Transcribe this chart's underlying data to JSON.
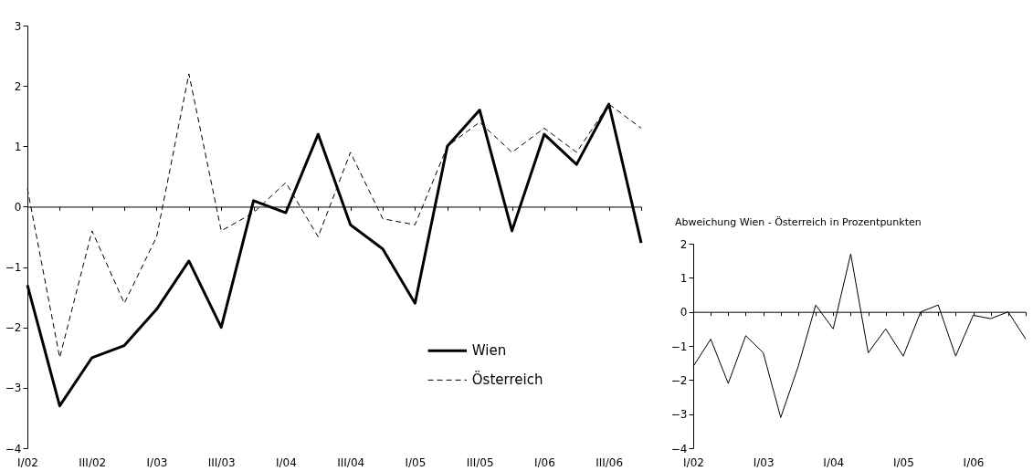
{
  "chart_data": [
    {
      "type": "line",
      "categories": [
        "I/02",
        null,
        "III/02",
        null,
        "I/03",
        null,
        "III/03",
        null,
        "I/04",
        null,
        "III/04",
        null,
        "I/05",
        null,
        "III/05",
        null,
        "I/06",
        null,
        "III/06",
        null
      ],
      "series": [
        {
          "name": "Wien",
          "color": "#000000",
          "line_style": "solid",
          "values": [
            -1.3,
            -3.3,
            -2.5,
            -2.3,
            -1.7,
            -0.9,
            -2.0,
            0.1,
            -0.1,
            1.2,
            -0.3,
            -0.7,
            -1.6,
            1.0,
            1.6,
            -0.4,
            1.2,
            0.7,
            1.7,
            -0.6
          ]
        },
        {
          "name": "Österreich",
          "color": "#000000",
          "line_style": "dashed",
          "values": [
            0.3,
            -2.5,
            -0.4,
            -1.6,
            -0.5,
            2.2,
            -0.4,
            -0.1,
            0.4,
            -0.5,
            0.9,
            -0.2,
            -0.3,
            1.0,
            1.4,
            0.9,
            1.3,
            0.9,
            1.7,
            1.3
          ]
        }
      ],
      "ylim": [
        -4,
        3
      ],
      "yticks": [
        -4,
        -3,
        -2,
        -1,
        0,
        1,
        2,
        3
      ],
      "legend": "bottom"
    },
    {
      "type": "line",
      "title": "Abweichung Wien - Österreich in  Prozentpunkten",
      "categories": [
        "I/02",
        null,
        null,
        null,
        "I/03",
        null,
        null,
        null,
        "I/04",
        null,
        null,
        null,
        "I/05",
        null,
        null,
        null,
        "I/06",
        null,
        null,
        null
      ],
      "series": [
        {
          "color": "#000000",
          "line_style": "solid",
          "values": [
            -1.6,
            -0.8,
            -2.1,
            -0.7,
            -1.2,
            -3.1,
            -1.6,
            0.2,
            -0.5,
            1.7,
            -1.2,
            -0.5,
            -1.3,
            0.0,
            0.2,
            -1.3,
            -0.1,
            -0.2,
            0.0,
            -0.8
          ]
        }
      ],
      "ylim": [
        -4,
        2
      ],
      "yticks": [
        -4,
        -3,
        -2,
        -1,
        0,
        1,
        2
      ],
      "legend": false
    }
  ]
}
